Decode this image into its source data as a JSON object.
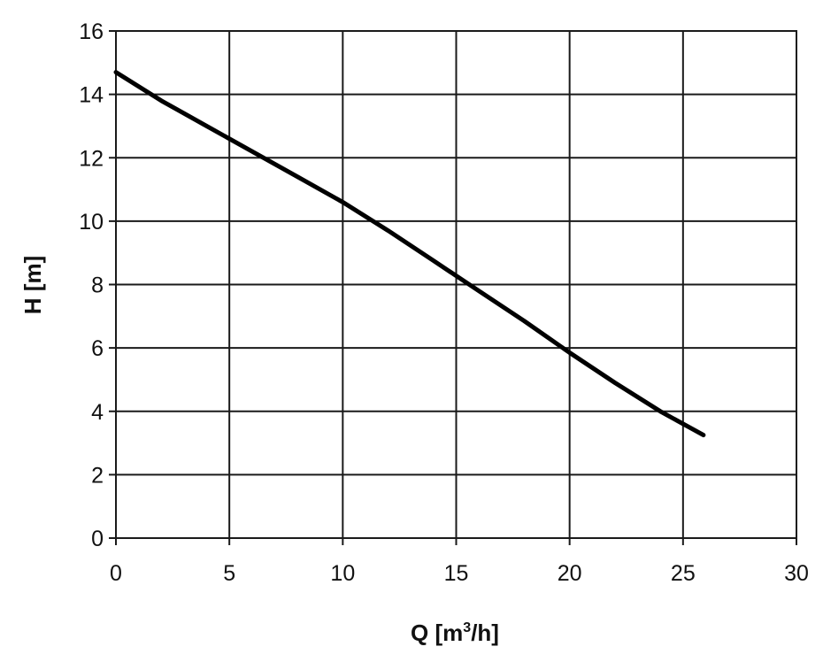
{
  "chart_data": {
    "type": "line",
    "title": "",
    "xlabel": "Q [m",
    "xlabel_superscript": "3",
    "xlabel_suffix": "/h]",
    "ylabel": "H [m]",
    "xlim": [
      0,
      30
    ],
    "ylim": [
      0,
      16
    ],
    "xticks": [
      0,
      5,
      10,
      15,
      20,
      25,
      30
    ],
    "yticks": [
      0,
      2,
      4,
      6,
      8,
      10,
      12,
      14,
      16
    ],
    "grid": true,
    "legend": "none",
    "line_color": "#000000",
    "series": [
      {
        "x": [
          0,
          2,
          4,
          6,
          8,
          10,
          12,
          14,
          16,
          18,
          20,
          22,
          24,
          25.9
        ],
        "y": [
          14.7,
          13.8,
          13.0,
          12.2,
          11.4,
          10.6,
          9.7,
          8.75,
          7.8,
          6.85,
          5.85,
          4.9,
          4.0,
          3.25
        ]
      }
    ]
  }
}
